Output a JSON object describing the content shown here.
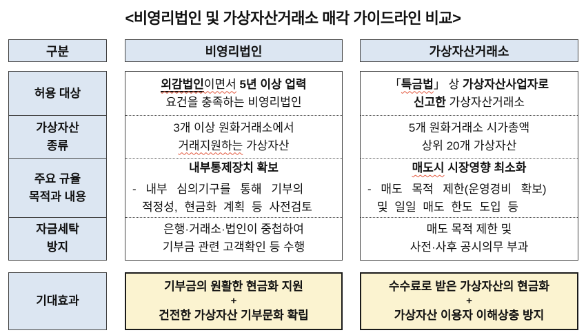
{
  "title": "<비영리법인 및 가상자산거래소 매각 가이드라인 비교>",
  "colors": {
    "header_fill": "#dce6f2",
    "label_fill": "#dce6f2",
    "effect_fill": "#fbf3d0",
    "border": "#404040",
    "text": "#111111",
    "wavy": "#e2553a"
  },
  "header": {
    "col1": "구분",
    "col2": "비영리법인",
    "col3": "가상자산거래소"
  },
  "rows": [
    {
      "label": "허용 대상",
      "nonprofit": [
        {
          "segs": [
            {
              "t": "외감법인",
              "b": 1,
              "u": 1,
              "w": 1
            },
            {
              "t": "이면서",
              "w": 1
            },
            {
              "t": " "
            },
            {
              "t": "5년 이상 업력",
              "b": 1
            }
          ]
        },
        {
          "segs": [
            {
              "t": "요건을 충족하는 비영리법인"
            }
          ]
        }
      ],
      "exchange": [
        {
          "segs": [
            {
              "t": "「"
            },
            {
              "t": "특금법",
              "b": 1,
              "w": 1
            },
            {
              "t": "」 상 "
            },
            {
              "t": "가상자산사업자로",
              "b": 1
            }
          ]
        },
        {
          "segs": [
            {
              "t": "신고한",
              "b": 1
            },
            {
              "t": " 가상자산거래소"
            }
          ]
        }
      ]
    },
    {
      "label": "가상자산\n종류",
      "nonprofit": [
        {
          "segs": [
            {
              "t": "3개 이상 원화거래소에서"
            }
          ]
        },
        {
          "segs": [
            {
              "t": "거래지원하는",
              "w": 1
            },
            {
              "t": " 가상자산"
            }
          ]
        }
      ],
      "exchange": [
        {
          "segs": [
            {
              "t": "5개 원화거래소 시가총액"
            }
          ]
        },
        {
          "segs": [
            {
              "t": "상위 20개 가상자산"
            }
          ]
        }
      ]
    },
    {
      "label": "주요 규율\n목적과 내용",
      "nonprofit": [
        {
          "cls": "head",
          "segs": [
            {
              "t": "내부통제장치 확보",
              "b": 1
            }
          ]
        },
        {
          "cls": "dash",
          "segs": [
            {
              "t": "- 내부 심의기구를 통해 기부의"
            }
          ]
        },
        {
          "cls": "cont",
          "segs": [
            {
              "t": "적정성, 현금화 계획 등 사전검토"
            }
          ]
        }
      ],
      "exchange": [
        {
          "cls": "head",
          "segs": [
            {
              "t": "매도시",
              "b": 1,
              "w": 1
            },
            {
              "t": " 시장영향 최소화",
              "b": 1
            }
          ]
        },
        {
          "cls": "dash",
          "segs": [
            {
              "t": "- 매도 목적 제한(운영경비 확보)"
            }
          ]
        },
        {
          "cls": "cont",
          "segs": [
            {
              "t": "및 일일 매도 한도 도입 등"
            }
          ]
        }
      ]
    },
    {
      "label": "자금세탁\n방지",
      "nonprofit": [
        {
          "segs": [
            {
              "t": "은행·거래소·법인이 중첩하여"
            }
          ]
        },
        {
          "segs": [
            {
              "t": "기부금 관련 고객확인 등 수행"
            }
          ]
        }
      ],
      "exchange": [
        {
          "segs": [
            {
              "t": "매도 목적 제한 및"
            }
          ]
        },
        {
          "segs": [
            {
              "t": "사전·사후 공시의무 부과"
            }
          ]
        }
      ]
    }
  ],
  "effects": {
    "label": "기대효과",
    "nonprofit": [
      "기부금의 원활한 현금화 지원",
      "+",
      "건전한 가상자산 기부문화 확립"
    ],
    "exchange": [
      "수수료로 받은 가상자산의 현금화",
      "+",
      "가상자산 이용자 이해상충 방지"
    ]
  }
}
